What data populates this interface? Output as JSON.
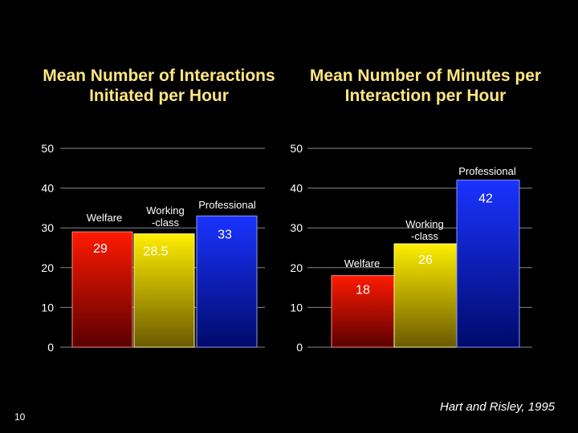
{
  "colors": {
    "background": "#000000",
    "title": "#ffe680",
    "welfare": "#ff1a00",
    "working_class": "#ffee00",
    "professional": "#1a33ff"
  },
  "slide_number": "10",
  "citation": "Hart and Risley, 1995",
  "chart_data": [
    {
      "type": "bar",
      "title": "Mean Number of Interactions Initiated per Hour",
      "categories": [
        "Welfare",
        "Working -class",
        "Professional"
      ],
      "values": [
        29,
        28.5,
        33
      ],
      "value_labels": [
        "29",
        "28.5",
        "33"
      ],
      "category_label_lines": [
        [
          "Welfare"
        ],
        [
          "Working",
          "-class"
        ],
        [
          "Professional"
        ]
      ],
      "yticks": [
        0,
        10,
        20,
        30,
        40,
        50
      ],
      "ylim": [
        0,
        50
      ],
      "xlabel": "",
      "ylabel": "",
      "grid": true
    },
    {
      "type": "bar",
      "title": "Mean Number of Minutes per Interaction per Hour",
      "categories": [
        "Welfare",
        "Working -class",
        "Professional"
      ],
      "values": [
        18,
        26,
        42
      ],
      "value_labels": [
        "18",
        "26",
        "42"
      ],
      "category_label_lines": [
        [
          "Welfare"
        ],
        [
          "Working",
          "-class"
        ],
        [
          "Professional"
        ]
      ],
      "yticks": [
        0,
        10,
        20,
        30,
        40,
        50
      ],
      "ylim": [
        0,
        50
      ],
      "xlabel": "",
      "ylabel": "",
      "grid": true
    }
  ]
}
